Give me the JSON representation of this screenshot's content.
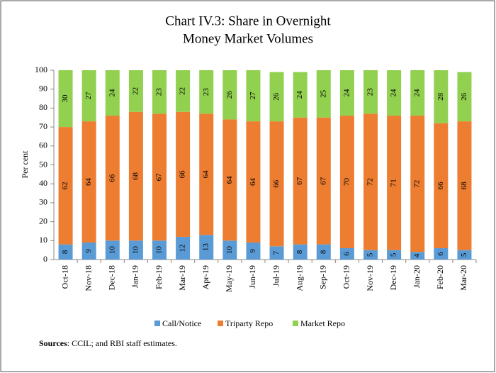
{
  "chart_data": {
    "type": "stacked_bar",
    "title": [
      "Chart IV.3: Share in  Overnight",
      "Money Market  Volumes"
    ],
    "y_label": "Per cent",
    "categories": [
      "Oct-18",
      "Nov-18",
      "Dec-18",
      "Jan-19",
      "Feb-19",
      "Mar-19",
      "Apr-19",
      "May-19",
      "Jun-19",
      "Jul-19",
      "Aug-19",
      "Sep-19",
      "Oct-19",
      "Nov-19",
      "Dec-19",
      "Jan-20",
      "Feb-20",
      "Mar-20"
    ],
    "series": [
      {
        "name": "Call/Notice",
        "color": "#5b9bd5",
        "values": [
          8,
          9,
          10,
          10,
          10,
          12,
          13,
          10,
          9,
          7,
          8,
          8,
          6,
          5,
          5,
          4,
          6,
          5
        ]
      },
      {
        "name": "Triparty Repo",
        "color": "#ed7d31",
        "values": [
          62,
          64,
          66,
          68,
          67,
          66,
          64,
          64,
          64,
          66,
          67,
          67,
          70,
          72,
          71,
          72,
          66,
          68
        ]
      },
      {
        "name": "Market Repo",
        "color": "#92d050",
        "values": [
          30,
          27,
          24,
          22,
          23,
          22,
          23,
          26,
          27,
          26,
          24,
          25,
          24,
          23,
          24,
          24,
          28,
          26
        ]
      }
    ],
    "ylim": [
      0,
      100
    ],
    "yticks": [
      0,
      10,
      20,
      30,
      40,
      50,
      60,
      70,
      80,
      90,
      100
    ],
    "grid": false,
    "source_label": "Sources",
    "source_text": ": CCIL; and RBI staff estimates."
  }
}
